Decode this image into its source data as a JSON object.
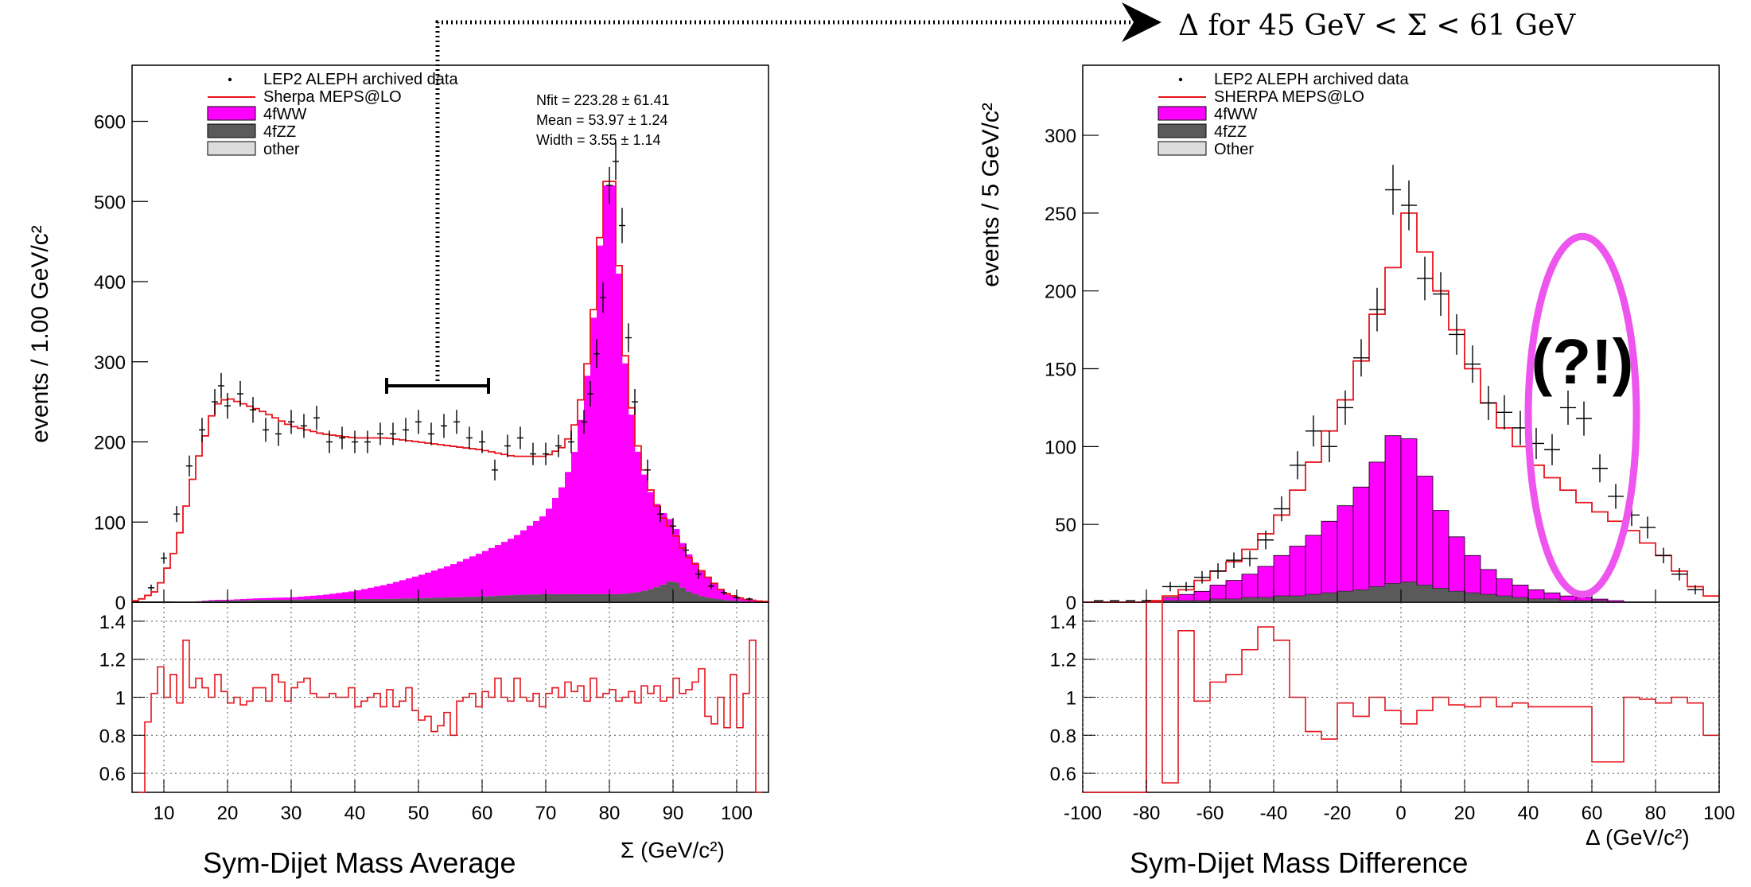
{
  "title_arrow": "Δ for 45 GeV < Σ < 61 GeV",
  "annotation": "(?!)",
  "colors": {
    "sherpa": "#e8141c",
    "ww": "#ff00ff",
    "zz": "#5a5a5a",
    "other": "#dcdcdc",
    "annotation": "#ee55ee",
    "data": "#000000"
  },
  "chart_data": [
    {
      "type": "bar",
      "title": "Sym-Dijet Mass Average",
      "xlabel": "Σ (GeV/c²)",
      "ylabel": "events / 1.00 GeV/c²",
      "xlim": [
        5,
        105
      ],
      "ylim": [
        0,
        670
      ],
      "xticks": [
        10,
        20,
        30,
        40,
        50,
        60,
        70,
        80,
        90,
        100
      ],
      "yticks": [
        0,
        100,
        200,
        300,
        400,
        500,
        600
      ],
      "legend": [
        "LEP2 ALEPH archived data",
        "Sherpa MEPS@LO",
        "4fWW",
        "4fZZ",
        "other"
      ],
      "stats": [
        "Nfit = 223.28 ±  61.41",
        "Mean = 53.97 ±  1.24",
        "Width = 3.55 ±  1.14"
      ],
      "selection_range": [
        45,
        61
      ],
      "x": [
        6,
        9,
        12,
        15,
        18,
        20,
        25,
        30,
        35,
        40,
        45,
        50,
        55,
        60,
        65,
        70,
        73,
        75,
        77,
        79,
        80,
        81,
        82,
        84,
        86,
        88,
        90,
        92,
        95,
        98,
        101,
        104
      ],
      "sherpa": [
        2,
        15,
        70,
        170,
        245,
        255,
        240,
        220,
        210,
        205,
        205,
        200,
        195,
        190,
        182,
        182,
        195,
        230,
        320,
        500,
        550,
        500,
        340,
        210,
        150,
        110,
        90,
        60,
        35,
        12,
        4,
        1
      ],
      "series": [
        {
          "name": "4fWW",
          "values": [
            0,
            0,
            0,
            0,
            1,
            1,
            2,
            3,
            5,
            10,
            18,
            28,
            40,
            55,
            72,
            100,
            140,
            190,
            300,
            480,
            540,
            480,
            320,
            190,
            130,
            95,
            72,
            50,
            28,
            10,
            3,
            0
          ]
        },
        {
          "name": "4fZZ",
          "values": [
            0,
            0,
            1,
            1,
            2,
            2,
            3,
            3,
            4,
            4,
            4,
            5,
            6,
            7,
            9,
            10,
            10,
            10,
            10,
            10,
            10,
            10,
            10,
            12,
            15,
            20,
            28,
            15,
            6,
            3,
            1,
            0
          ]
        },
        {
          "name": "other",
          "values": [
            0,
            0,
            0,
            0,
            0,
            0,
            0,
            0,
            0,
            0,
            0,
            0,
            0,
            0,
            0,
            0,
            0,
            0,
            0,
            0,
            0,
            0,
            0,
            0,
            0,
            0,
            0,
            0,
            0,
            0,
            0,
            0
          ]
        }
      ],
      "data_points": {
        "x": [
          8,
          10,
          12,
          14,
          16,
          18,
          19,
          20,
          22,
          24,
          26,
          28,
          30,
          32,
          34,
          36,
          38,
          40,
          42,
          44,
          46,
          48,
          50,
          52,
          54,
          56,
          58,
          60,
          62,
          64,
          66,
          68,
          70,
          72,
          74,
          76,
          77,
          78,
          79,
          80,
          81,
          82,
          83,
          84,
          86,
          88,
          90,
          92,
          94,
          96,
          98,
          100,
          102
        ],
        "y": [
          18,
          55,
          110,
          170,
          215,
          250,
          270,
          245,
          260,
          240,
          215,
          210,
          225,
          220,
          230,
          200,
          205,
          200,
          200,
          210,
          210,
          215,
          225,
          210,
          220,
          225,
          205,
          200,
          165,
          195,
          205,
          185,
          185,
          195,
          200,
          225,
          260,
          310,
          380,
          520,
          550,
          470,
          330,
          250,
          165,
          110,
          95,
          65,
          35,
          20,
          12,
          6,
          4
        ],
        "err": [
          4,
          7,
          10,
          13,
          15,
          16,
          16,
          16,
          16,
          16,
          15,
          15,
          15,
          15,
          15,
          14,
          14,
          14,
          14,
          14,
          14,
          15,
          15,
          14,
          15,
          15,
          14,
          14,
          13,
          14,
          14,
          14,
          14,
          14,
          14,
          15,
          16,
          18,
          19,
          23,
          23,
          22,
          18,
          16,
          13,
          10,
          10,
          8,
          6,
          4,
          3,
          2,
          2
        ]
      },
      "ratio": {
        "ylim": [
          0.5,
          1.5
        ],
        "yticks": [
          0.6,
          0.8,
          1.0,
          1.2,
          1.4
        ],
        "ytick_labels": [
          "0.6",
          "0.8",
          "1",
          "1.2",
          "1.4"
        ],
        "x": [
          6,
          7,
          8,
          9,
          10,
          11,
          12,
          13,
          14,
          15,
          16,
          17,
          18,
          19,
          20,
          21,
          22,
          23,
          24,
          25,
          26,
          27,
          28,
          29,
          30,
          31,
          32,
          33,
          34,
          35,
          36,
          37,
          38,
          39,
          40,
          41,
          42,
          43,
          44,
          45,
          46,
          47,
          48,
          49,
          50,
          51,
          52,
          53,
          54,
          55,
          56,
          57,
          58,
          59,
          60,
          61,
          62,
          63,
          64,
          65,
          66,
          67,
          68,
          69,
          70,
          71,
          72,
          73,
          74,
          75,
          76,
          77,
          78,
          79,
          80,
          81,
          82,
          83,
          84,
          85,
          86,
          87,
          88,
          89,
          90,
          91,
          92,
          93,
          94,
          95,
          96,
          97,
          98,
          99,
          100,
          101,
          102,
          103
        ],
        "y": [
          0.5,
          0.87,
          1.02,
          1.16,
          1.0,
          1.12,
          0.97,
          1.3,
          1.05,
          1.1,
          1.05,
          1.0,
          1.12,
          1.03,
          0.97,
          1.0,
          0.96,
          0.98,
          1.05,
          1.05,
          0.98,
          1.12,
          1.08,
          0.98,
          1.05,
          1.08,
          1.1,
          1.02,
          1.0,
          1.0,
          1.02,
          1.0,
          1.0,
          1.05,
          0.95,
          0.98,
          1.0,
          1.02,
          0.95,
          1.04,
          0.95,
          0.98,
          1.05,
          0.93,
          0.88,
          0.9,
          0.82,
          0.85,
          0.92,
          0.8,
          0.98,
          1.0,
          1.02,
          0.95,
          1.03,
          1.0,
          1.1,
          1.0,
          0.98,
          1.1,
          1.0,
          0.98,
          1.02,
          0.95,
          1.02,
          1.05,
          1.0,
          1.08,
          1.03,
          1.06,
          0.98,
          1.1,
          1.0,
          1.02,
          1.04,
          0.98,
          1.0,
          1.03,
          0.97,
          1.06,
          1.02,
          1.06,
          0.98,
          1.0,
          1.1,
          1.02,
          1.04,
          1.08,
          1.15,
          0.9,
          0.86,
          1.0,
          0.84,
          1.12,
          0.84,
          1.02,
          1.3,
          0.5
        ]
      }
    },
    {
      "type": "bar",
      "title": "Sym-Dijet Mass Difference",
      "xlabel": "Δ (GeV/c²)",
      "ylabel": "events / 5 GeV/c²",
      "xlim": [
        -100,
        100
      ],
      "ylim": [
        0,
        345
      ],
      "xticks": [
        -100,
        -80,
        -60,
        -40,
        -20,
        0,
        20,
        40,
        60,
        80,
        100
      ],
      "yticks": [
        0,
        50,
        100,
        150,
        200,
        250,
        300
      ],
      "legend": [
        "LEP2 ALEPH archived data",
        "SHERPA MEPS@LO",
        "4fWW",
        "4fZZ",
        "Other"
      ],
      "bin_edges": [
        -100,
        -95,
        -90,
        -85,
        -80,
        -75,
        -70,
        -65,
        -60,
        -55,
        -50,
        -45,
        -40,
        -35,
        -30,
        -25,
        -20,
        -15,
        -10,
        -5,
        0,
        5,
        10,
        15,
        20,
        25,
        30,
        35,
        40,
        45,
        50,
        55,
        60,
        65,
        70,
        75,
        80,
        85,
        90,
        95,
        100
      ],
      "sherpa": [
        0,
        0,
        0,
        0,
        1,
        4,
        8,
        14,
        20,
        26,
        34,
        44,
        56,
        72,
        90,
        110,
        130,
        155,
        185,
        215,
        250,
        225,
        200,
        175,
        150,
        128,
        112,
        100,
        88,
        80,
        72,
        64,
        58,
        52,
        46,
        38,
        30,
        20,
        10,
        4
      ],
      "series": [
        {
          "name": "4fWW",
          "values": [
            0,
            0,
            0,
            0,
            0,
            2,
            4,
            6,
            9,
            12,
            15,
            20,
            26,
            32,
            38,
            46,
            55,
            66,
            80,
            95,
            92,
            70,
            50,
            35,
            24,
            16,
            11,
            8,
            6,
            4,
            3,
            2,
            1,
            1,
            0,
            0,
            0,
            0,
            0,
            0
          ]
        },
        {
          "name": "4fZZ",
          "values": [
            0,
            0,
            0,
            0,
            0,
            1,
            1,
            1,
            2,
            2,
            3,
            3,
            4,
            4,
            5,
            6,
            7,
            8,
            10,
            12,
            13,
            11,
            9,
            7,
            6,
            5,
            4,
            3,
            2,
            2,
            1,
            1,
            1,
            0,
            0,
            0,
            0,
            0,
            0,
            0
          ]
        },
        {
          "name": "Other",
          "values": [
            0,
            0,
            0,
            0,
            0,
            0,
            0,
            0,
            0,
            0,
            0,
            0,
            0,
            0,
            0,
            0,
            0,
            0,
            0,
            0,
            0,
            0,
            0,
            0,
            0,
            0,
            0,
            0,
            0,
            0,
            0,
            0,
            0,
            0,
            0,
            0,
            0,
            0,
            0,
            0
          ]
        }
      ],
      "data_points": {
        "x": [
          -72.5,
          -67.5,
          -62.5,
          -57.5,
          -52.5,
          -47.5,
          -42.5,
          -37.5,
          -32.5,
          -27.5,
          -22.5,
          -17.5,
          -12.5,
          -7.5,
          -2.5,
          2.5,
          7.5,
          12.5,
          17.5,
          22.5,
          27.5,
          32.5,
          37.5,
          42.5,
          47.5,
          52.5,
          57.5,
          62.5,
          67.5,
          72.5,
          77.5,
          82.5,
          87.5,
          92.5
        ],
        "y": [
          10,
          10,
          16,
          20,
          27,
          28,
          40,
          60,
          88,
          110,
          100,
          125,
          157,
          188,
          265,
          255,
          208,
          198,
          172,
          153,
          128,
          122,
          112,
          102,
          98,
          125,
          118,
          86,
          68,
          56,
          48,
          30,
          18,
          8
        ],
        "err": [
          3,
          3,
          4,
          5,
          5,
          5,
          6,
          8,
          9,
          10,
          10,
          11,
          12,
          14,
          16,
          16,
          14,
          14,
          13,
          12,
          11,
          11,
          11,
          10,
          10,
          11,
          11,
          9,
          8,
          7,
          7,
          5,
          4,
          3
        ]
      },
      "highlight": {
        "x_center": 57,
        "y_center": 120,
        "x_halfwidth": 17,
        "y_halfwidth": 115
      },
      "ratio": {
        "ylim": [
          0.5,
          1.5
        ],
        "yticks": [
          0.6,
          0.8,
          1.0,
          1.2,
          1.4
        ],
        "ytick_labels": [
          "0.6",
          "0.8",
          "1",
          "1.2",
          "1.4"
        ],
        "bin_edges": [
          -100,
          -80,
          -75,
          -70,
          -65,
          -60,
          -55,
          -50,
          -45,
          -40,
          -35,
          -30,
          -25,
          -20,
          -15,
          -10,
          -5,
          0,
          5,
          10,
          15,
          20,
          25,
          30,
          35,
          40,
          45,
          50,
          55,
          60,
          65,
          70,
          75,
          80,
          85,
          90,
          95,
          100
        ],
        "y": [
          0.3,
          1.5,
          0.55,
          1.35,
          0.98,
          1.08,
          1.12,
          1.25,
          1.37,
          1.3,
          1.0,
          0.82,
          0.78,
          0.97,
          0.9,
          1.0,
          0.93,
          0.86,
          0.93,
          1.0,
          0.96,
          0.95,
          1.0,
          0.95,
          0.97,
          0.95,
          0.95,
          0.95,
          0.95,
          0.66,
          0.66,
          1.0,
          0.99,
          0.97,
          1.0,
          0.97,
          0.8,
          0.8
        ]
      }
    }
  ]
}
